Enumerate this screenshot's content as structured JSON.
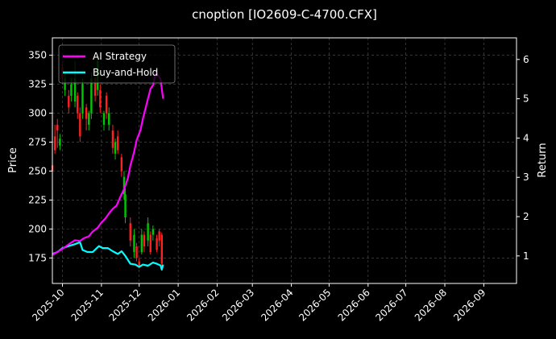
{
  "chart_data": {
    "type": "candlestick+line",
    "title": "cnoption [IO2609-C-4700.CFX]",
    "ylabel_left": "Price",
    "ylabel_right": "Return",
    "left_ticks": [
      175,
      200,
      225,
      250,
      275,
      300,
      325,
      350
    ],
    "right_ticks": [
      1,
      2,
      3,
      4,
      5,
      6
    ],
    "ylim_left": [
      153,
      365
    ],
    "ylim_right": [
      0.3,
      6.55
    ],
    "x_ticks": [
      "2025-10",
      "2025-11",
      "2025-12",
      "2026-01",
      "2026-02",
      "2026-03",
      "2026-04",
      "2026-05",
      "2026-06",
      "2026-07",
      "2026-08",
      "2026-09"
    ],
    "xlim": [
      "2025-09-23",
      "2026-09-27"
    ],
    "grid": true,
    "legend_position": "top-left",
    "colors": {
      "background": "#000000",
      "strategy": "#ff00ff",
      "buyhold": "#00ffff",
      "candle_up": "#00c800",
      "candle_down": "#ff2020",
      "grid": "#555555"
    },
    "series": [
      {
        "name": "AI Strategy",
        "axis": "right",
        "points": [
          [
            "2025-09-23",
            1.03
          ],
          [
            "2025-09-27",
            1.1
          ],
          [
            "2025-10-02",
            1.2
          ],
          [
            "2025-10-07",
            1.32
          ],
          [
            "2025-10-11",
            1.4
          ],
          [
            "2025-10-15",
            1.38
          ],
          [
            "2025-10-18",
            1.45
          ],
          [
            "2025-10-22",
            1.5
          ],
          [
            "2025-10-25",
            1.62
          ],
          [
            "2025-10-29",
            1.72
          ],
          [
            "2025-11-01",
            1.85
          ],
          [
            "2025-11-04",
            1.95
          ],
          [
            "2025-11-07",
            2.08
          ],
          [
            "2025-11-10",
            2.2
          ],
          [
            "2025-11-13",
            2.28
          ],
          [
            "2025-11-16",
            2.5
          ],
          [
            "2025-11-19",
            2.7
          ],
          [
            "2025-11-22",
            2.98
          ],
          [
            "2025-11-24",
            3.3
          ],
          [
            "2025-11-27",
            3.65
          ],
          [
            "2025-11-29",
            3.95
          ],
          [
            "2025-12-02",
            4.2
          ],
          [
            "2025-12-04",
            4.5
          ],
          [
            "2025-12-06",
            4.75
          ],
          [
            "2025-12-08",
            5.0
          ],
          [
            "2025-12-10",
            5.25
          ],
          [
            "2025-12-12",
            5.35
          ],
          [
            "2025-12-14",
            5.65
          ],
          [
            "2025-12-16",
            5.6
          ],
          [
            "2025-12-18",
            5.5
          ],
          [
            "2025-12-20",
            5.0
          ]
        ]
      },
      {
        "name": "Buy-and-Hold",
        "axis": "right",
        "points": [
          [
            "2025-09-23",
            1.05
          ],
          [
            "2025-09-27",
            1.1
          ],
          [
            "2025-10-01",
            1.2
          ],
          [
            "2025-10-06",
            1.25
          ],
          [
            "2025-10-11",
            1.3
          ],
          [
            "2025-10-15",
            1.35
          ],
          [
            "2025-10-17",
            1.15
          ],
          [
            "2025-10-21",
            1.1
          ],
          [
            "2025-10-25",
            1.1
          ],
          [
            "2025-10-30",
            1.25
          ],
          [
            "2025-11-02",
            1.2
          ],
          [
            "2025-11-06",
            1.2
          ],
          [
            "2025-11-10",
            1.12
          ],
          [
            "2025-11-14",
            1.05
          ],
          [
            "2025-11-17",
            1.12
          ],
          [
            "2025-11-20",
            1.0
          ],
          [
            "2025-11-24",
            0.8
          ],
          [
            "2025-11-28",
            0.78
          ],
          [
            "2025-12-01",
            0.72
          ],
          [
            "2025-12-04",
            0.78
          ],
          [
            "2025-12-08",
            0.75
          ],
          [
            "2025-12-12",
            0.83
          ],
          [
            "2025-12-15",
            0.8
          ],
          [
            "2025-12-18",
            0.76
          ],
          [
            "2025-12-19",
            0.65
          ],
          [
            "2025-12-20",
            0.78
          ]
        ]
      },
      {
        "name": "Price",
        "axis": "left",
        "type": "candlestick",
        "candles": [
          [
            "2025-09-23",
            250,
            255,
            248,
            258,
            "down"
          ],
          [
            "2025-09-25",
            268,
            280,
            265,
            290,
            "down"
          ],
          [
            "2025-09-27",
            285,
            290,
            270,
            295,
            "down"
          ],
          [
            "2025-09-29",
            272,
            278,
            268,
            282,
            "up"
          ],
          [
            "2025-10-01",
            330,
            340,
            325,
            345,
            "down"
          ],
          [
            "2025-10-03",
            320,
            330,
            315,
            335,
            "up"
          ],
          [
            "2025-10-06",
            305,
            315,
            300,
            320,
            "down"
          ],
          [
            "2025-10-08",
            315,
            325,
            310,
            330,
            "up"
          ],
          [
            "2025-10-11",
            310,
            330,
            305,
            345,
            "up"
          ],
          [
            "2025-10-13",
            300,
            315,
            295,
            318,
            "down"
          ],
          [
            "2025-10-15",
            280,
            300,
            275,
            305,
            "down"
          ],
          [
            "2025-10-17",
            300,
            325,
            295,
            330,
            "up"
          ],
          [
            "2025-10-20",
            295,
            305,
            285,
            308,
            "down"
          ],
          [
            "2025-10-22",
            290,
            300,
            285,
            302,
            "up"
          ],
          [
            "2025-10-24",
            300,
            330,
            295,
            335,
            "up"
          ],
          [
            "2025-10-27",
            315,
            330,
            310,
            332,
            "down"
          ],
          [
            "2025-10-29",
            320,
            345,
            315,
            350,
            "up"
          ],
          [
            "2025-10-31",
            305,
            320,
            300,
            325,
            "down"
          ],
          [
            "2025-11-03",
            290,
            300,
            285,
            302,
            "up"
          ],
          [
            "2025-11-05",
            300,
            315,
            295,
            318,
            "down"
          ],
          [
            "2025-11-07",
            290,
            300,
            285,
            305,
            "up"
          ],
          [
            "2025-11-10",
            270,
            285,
            265,
            290,
            "down"
          ],
          [
            "2025-11-12",
            265,
            275,
            260,
            278,
            "up"
          ],
          [
            "2025-11-14",
            268,
            280,
            265,
            285,
            "down"
          ],
          [
            "2025-11-17",
            250,
            262,
            245,
            265,
            "down"
          ],
          [
            "2025-11-19",
            230,
            245,
            225,
            250,
            "up"
          ],
          [
            "2025-11-20",
            210,
            230,
            205,
            235,
            "up"
          ],
          [
            "2025-11-24",
            190,
            205,
            185,
            210,
            "down"
          ],
          [
            "2025-11-27",
            180,
            195,
            175,
            200,
            "up"
          ],
          [
            "2025-11-29",
            175,
            185,
            172,
            188,
            "down"
          ],
          [
            "2025-12-01",
            168,
            172,
            166,
            175,
            "down"
          ],
          [
            "2025-12-03",
            180,
            195,
            178,
            200,
            "up"
          ],
          [
            "2025-12-05",
            185,
            195,
            180,
            198,
            "down"
          ],
          [
            "2025-12-08",
            190,
            205,
            185,
            210,
            "up"
          ],
          [
            "2025-12-10",
            180,
            195,
            178,
            198,
            "down"
          ],
          [
            "2025-12-12",
            195,
            200,
            190,
            203,
            "up"
          ],
          [
            "2025-12-15",
            182,
            192,
            180,
            195,
            "down"
          ],
          [
            "2025-12-17",
            190,
            198,
            185,
            200,
            "down"
          ],
          [
            "2025-12-19",
            170,
            195,
            168,
            197,
            "down"
          ]
        ]
      }
    ]
  }
}
